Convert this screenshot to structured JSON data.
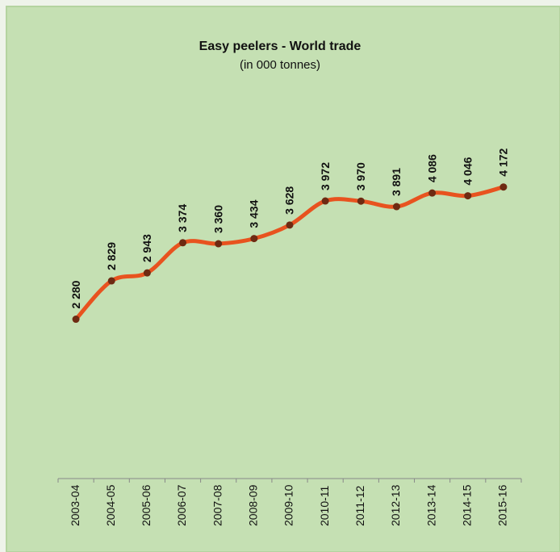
{
  "chart_data": {
    "type": "line",
    "title": "Easy peelers - World trade",
    "subtitle": "(in 000 tonnes)",
    "categories": [
      "2003-04",
      "2004-05",
      "2005-06",
      "2006-07",
      "2007-08",
      "2008-09",
      "2009-10",
      "2010-11",
      "2011-12",
      "2012-13",
      "2013-14",
      "2014-15",
      "2015-16"
    ],
    "series": [
      {
        "name": "World trade",
        "color": "#e8531f",
        "marker_color": "#6e2a12",
        "values": [
          2280,
          2829,
          2943,
          3374,
          3360,
          3434,
          3628,
          3972,
          3970,
          3891,
          4086,
          4046,
          4172
        ],
        "value_labels": [
          "2 280",
          "2 829",
          "2 943",
          "3 374",
          "3 360",
          "3 434",
          "3 628",
          "3 972",
          "3 970",
          "3 891",
          "4 086",
          "4 046",
          "4 172"
        ]
      }
    ],
    "ylim": [
      0,
      5000
    ]
  }
}
